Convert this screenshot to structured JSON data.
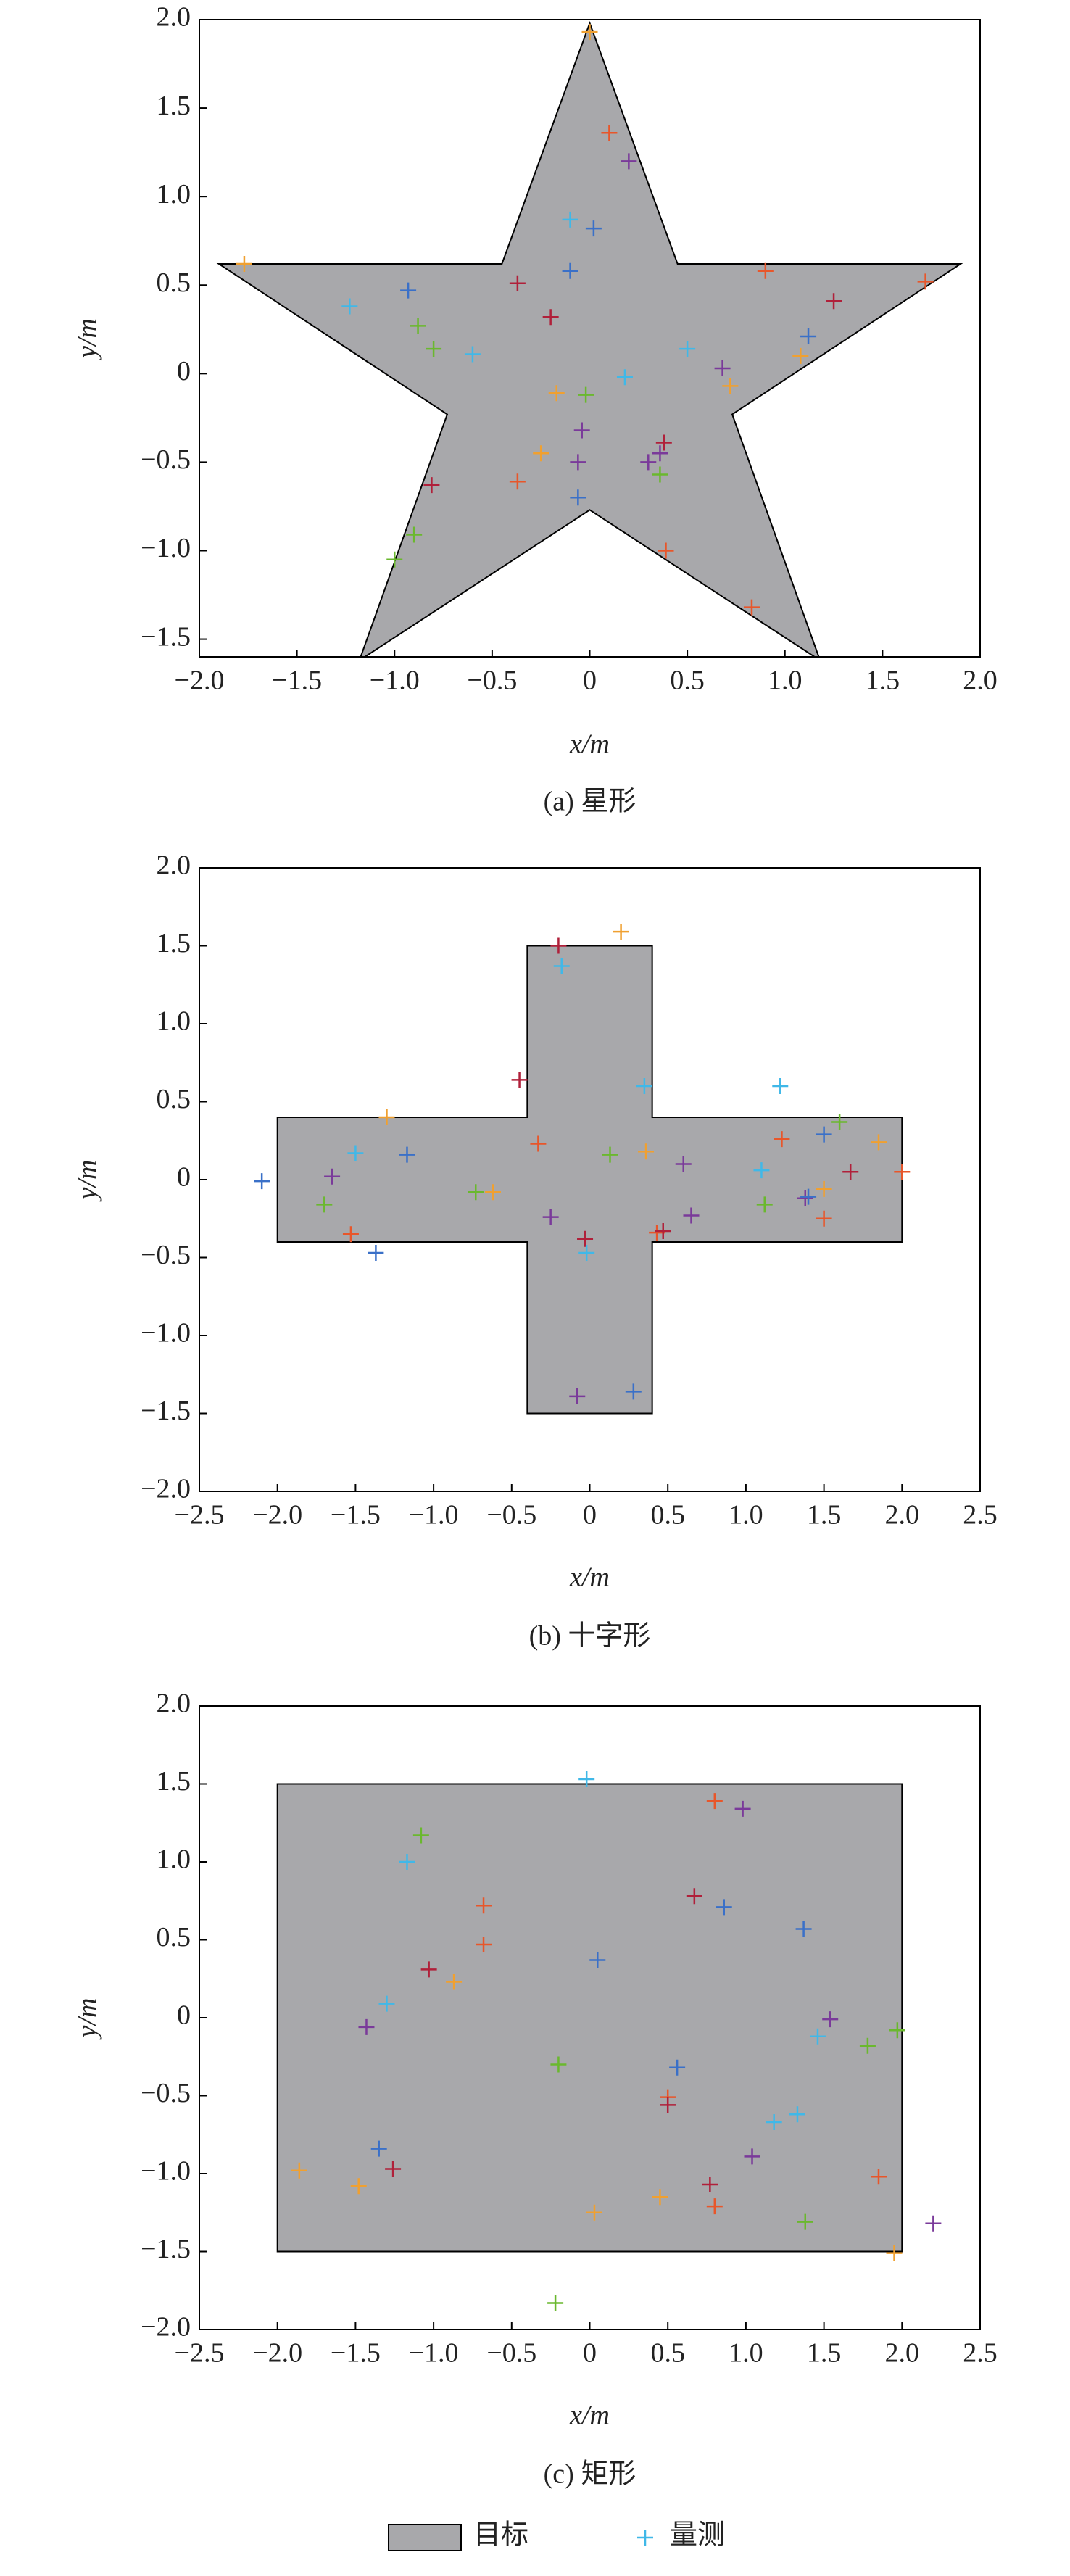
{
  "chart_data": [
    {
      "type": "scatter",
      "caption": "(a) 星形",
      "x_label": "x/m",
      "y_label": "y/m",
      "xlim": [
        -2,
        2
      ],
      "ylim": [
        -1.6,
        2
      ],
      "xticks": [
        {
          "value": -2,
          "label": "−2.0"
        },
        {
          "value": -1.5,
          "label": "−1.5"
        },
        {
          "value": -1,
          "label": "−1.0"
        },
        {
          "value": -0.5,
          "label": "−0.5"
        },
        0,
        0.5,
        {
          "value": 1,
          "label": "1.0"
        },
        1.5,
        {
          "value": 2,
          "label": "2.0"
        }
      ],
      "yticks": [
        {
          "value": -1.5,
          "label": "−1.5"
        },
        {
          "value": -1,
          "label": "−1.0"
        },
        {
          "value": -0.5,
          "label": "−0.5"
        },
        0,
        0.5,
        {
          "value": 1,
          "label": "1.0"
        },
        1.5,
        {
          "value": 2,
          "label": "2.0"
        }
      ],
      "target": {
        "color": "#a8a8ab",
        "x": [
          0,
          0.45,
          1.9,
          0.73,
          1.18,
          0,
          -1.18,
          -0.73,
          -1.9,
          -0.45
        ],
        "y": [
          1.98,
          0.62,
          0.62,
          -0.23,
          -1.62,
          -0.77,
          -1.62,
          -0.23,
          0.62,
          0.62
        ]
      },
      "series": [
        {
          "x": [
            0.0,
            0.1,
            0.2,
            -0.1,
            0.02,
            -1.77,
            -1.23,
            -0.93,
            -0.37,
            -0.1,
            -0.2,
            0.9,
            1.25,
            1.72,
            1.12,
            1.08,
            -0.88,
            -0.8,
            -0.6,
            0.5,
            0.68,
            0.72,
            0.18,
            -0.17,
            -0.02,
            -0.04,
            -0.25,
            -0.06,
            0.38,
            0.36,
            0.3,
            0.36,
            -0.81,
            -0.37,
            -0.06,
            0.39,
            -0.9,
            -1.0,
            0.83
          ],
          "y": [
            1.93,
            1.36,
            1.2,
            0.87,
            0.82,
            0.62,
            0.38,
            0.47,
            0.51,
            0.58,
            0.32,
            0.58,
            0.41,
            0.52,
            0.21,
            0.1,
            0.27,
            0.14,
            0.11,
            0.14,
            0.03,
            -0.07,
            -0.02,
            -0.11,
            -0.12,
            -0.32,
            -0.45,
            -0.5,
            -0.39,
            -0.45,
            -0.5,
            -0.57,
            -0.63,
            -0.61,
            -0.7,
            -1.0,
            -0.91,
            -1.05,
            -1.32
          ],
          "colors": [
            "#f0a030",
            "#e8562a",
            "#7a3a9a",
            "#40b8e8",
            "#3a70c8",
            "#f0a030",
            "#40b8e8",
            "#3a70c8",
            "#b0203a",
            "#3a70c8",
            "#b0203a",
            "#e8562a",
            "#b0203a",
            "#e8562a",
            "#3a70c8",
            "#f0a030",
            "#6ab82e",
            "#6ab82e",
            "#40b8e8",
            "#40b8e8",
            "#7a3a9a",
            "#f0a030",
            "#40b8e8",
            "#f0a030",
            "#6ab82e",
            "#7a3a9a",
            "#f0a030",
            "#7a3a9a",
            "#b0203a",
            "#7a3a9a",
            "#7a3a9a",
            "#6ab82e",
            "#b0203a",
            "#e8562a",
            "#3a70c8",
            "#e8562a",
            "#6ab82e",
            "#6ab82e",
            "#e8562a"
          ]
        }
      ]
    },
    {
      "type": "scatter",
      "caption": "(b) 十字形",
      "x_label": "x/m",
      "y_label": "y/m",
      "xlim": [
        -2.5,
        2.5
      ],
      "ylim": [
        -2,
        2
      ],
      "xticks": [
        {
          "value": -2.5,
          "label": "−2.5"
        },
        {
          "value": -2,
          "label": "−2.0"
        },
        {
          "value": -1.5,
          "label": "−1.5"
        },
        {
          "value": -1,
          "label": "−1.0"
        },
        {
          "value": -0.5,
          "label": "−0.5"
        },
        0,
        0.5,
        {
          "value": 1,
          "label": "1.0"
        },
        1.5,
        {
          "value": 2,
          "label": "2.0"
        },
        2.5
      ],
      "yticks": [
        {
          "value": -2,
          "label": "−2.0"
        },
        {
          "value": -1.5,
          "label": "−1.5"
        },
        {
          "value": -1,
          "label": "−1.0"
        },
        {
          "value": -0.5,
          "label": "−0.5"
        },
        0,
        0.5,
        {
          "value": 1,
          "label": "1.0"
        },
        1.5,
        {
          "value": 2,
          "label": "2.0"
        }
      ],
      "target": {
        "color": "#a8a8ab",
        "x": [
          -0.4,
          0.4,
          0.4,
          2,
          2,
          0.4,
          0.4,
          -0.4,
          -0.4,
          -2,
          -2,
          -0.4
        ],
        "y": [
          1.5,
          1.5,
          0.4,
          0.4,
          -0.4,
          -0.4,
          -1.5,
          -1.5,
          -0.4,
          -0.4,
          0.4,
          0.4
        ]
      },
      "series": [
        {
          "x": [
            0.2,
            -0.2,
            -0.18,
            -0.45,
            0.35,
            1.22,
            -1.3,
            -1.5,
            -1.17,
            -0.33,
            0.13,
            0.36,
            0.6,
            1.23,
            1.5,
            1.6,
            1.85,
            1.67,
            2.0,
            1.1,
            -2.1,
            -1.65,
            -1.7,
            -0.73,
            -0.62,
            -0.25,
            -0.03,
            -0.02,
            0.43,
            0.47,
            0.65,
            1.12,
            1.38,
            1.4,
            1.5,
            1.5,
            -1.53,
            -1.37,
            -0.08,
            0.28
          ],
          "y": [
            1.59,
            1.5,
            1.37,
            0.64,
            0.6,
            0.6,
            0.4,
            0.17,
            0.16,
            0.23,
            0.16,
            0.18,
            0.1,
            0.26,
            0.29,
            0.37,
            0.24,
            0.05,
            0.05,
            0.06,
            -0.01,
            0.02,
            -0.16,
            -0.08,
            -0.08,
            -0.24,
            -0.38,
            -0.47,
            -0.34,
            -0.33,
            -0.23,
            -0.16,
            -0.12,
            -0.11,
            -0.06,
            -0.25,
            -0.35,
            -0.47,
            -1.39,
            -1.36
          ],
          "colors": [
            "#f0a030",
            "#b0203a",
            "#40b8e8",
            "#b0203a",
            "#40b8e8",
            "#40b8e8",
            "#f0a030",
            "#40b8e8",
            "#3a70c8",
            "#e8562a",
            "#6ab82e",
            "#f0a030",
            "#7a3a9a",
            "#e8562a",
            "#3a70c8",
            "#6ab82e",
            "#f0a030",
            "#b0203a",
            "#e8562a",
            "#40b8e8",
            "#3a70c8",
            "#7a3a9a",
            "#6ab82e",
            "#6ab82e",
            "#f0a030",
            "#7a3a9a",
            "#b0203a",
            "#40b8e8",
            "#e8562a",
            "#b0203a",
            "#7a3a9a",
            "#6ab82e",
            "#7a3a9a",
            "#3a70c8",
            "#f0a030",
            "#e8562a",
            "#e8562a",
            "#3a70c8",
            "#7a3a9a",
            "#3a70c8"
          ]
        }
      ]
    },
    {
      "type": "scatter",
      "caption": "(c) 矩形",
      "x_label": "x/m",
      "y_label": "y/m",
      "xlim": [
        -2.5,
        2.5
      ],
      "ylim": [
        -2,
        2
      ],
      "xticks": [
        {
          "value": -2.5,
          "label": "−2.5"
        },
        {
          "value": -2,
          "label": "−2.0"
        },
        {
          "value": -1.5,
          "label": "−1.5"
        },
        {
          "value": -1,
          "label": "−1.0"
        },
        {
          "value": -0.5,
          "label": "−0.5"
        },
        0,
        0.5,
        {
          "value": 1,
          "label": "1.0"
        },
        1.5,
        {
          "value": 2,
          "label": "2.0"
        },
        2.5
      ],
      "yticks": [
        {
          "value": -2,
          "label": "−2.0"
        },
        {
          "value": -1.5,
          "label": "−1.5"
        },
        {
          "value": -1,
          "label": "−1.0"
        },
        {
          "value": -0.5,
          "label": "−0.5"
        },
        0,
        0.5,
        {
          "value": 1,
          "label": "1.0"
        },
        1.5,
        {
          "value": 2,
          "label": "2.0"
        }
      ],
      "target": {
        "color": "#a8a8ab",
        "x": [
          -2,
          2,
          2,
          -2
        ],
        "y": [
          1.5,
          1.5,
          -1.5,
          -1.5
        ]
      },
      "series": [
        {
          "x": [
            -0.02,
            0.8,
            0.98,
            -1.08,
            -1.17,
            -0.68,
            0.67,
            0.86,
            -0.68,
            0.05,
            1.37,
            -1.03,
            -0.87,
            -1.3,
            -1.43,
            -0.2,
            0.56,
            0.5,
            0.5,
            1.46,
            1.54,
            1.78,
            1.97,
            1.18,
            1.33,
            -1.35,
            -1.26,
            -1.86,
            -1.48,
            1.04,
            0.77,
            0.8,
            1.85,
            0.45,
            0.03,
            1.38,
            1.95,
            2.2,
            -0.22
          ],
          "y": [
            1.53,
            1.39,
            1.34,
            1.17,
            1.0,
            0.72,
            0.78,
            0.71,
            0.47,
            0.37,
            0.57,
            0.31,
            0.23,
            0.09,
            -0.06,
            -0.3,
            -0.32,
            -0.51,
            -0.56,
            -0.12,
            -0.01,
            -0.18,
            -0.08,
            -0.67,
            -0.62,
            -0.84,
            -0.97,
            -0.98,
            -1.08,
            -0.89,
            -1.07,
            -1.21,
            -1.02,
            -1.15,
            -1.25,
            -1.31,
            -1.51,
            -1.32,
            -1.83
          ],
          "colors": [
            "#40b8e8",
            "#e8562a",
            "#7a3a9a",
            "#6ab82e",
            "#40b8e8",
            "#e8562a",
            "#b0203a",
            "#3a70c8",
            "#e8562a",
            "#3a70c8",
            "#3a70c8",
            "#b0203a",
            "#f0a030",
            "#40b8e8",
            "#7a3a9a",
            "#6ab82e",
            "#3a70c8",
            "#e8562a",
            "#b0203a",
            "#40b8e8",
            "#7a3a9a",
            "#6ab82e",
            "#6ab82e",
            "#40b8e8",
            "#40b8e8",
            "#3a70c8",
            "#b0203a",
            "#f0a030",
            "#f0a030",
            "#7a3a9a",
            "#b0203a",
            "#e8562a",
            "#e8562a",
            "#f0a030",
            "#f0a030",
            "#6ab82e",
            "#f0a030",
            "#7a3a9a",
            "#6ab82e"
          ]
        }
      ]
    }
  ],
  "legend": [
    {
      "label": "目标",
      "color": "#a8a8ab",
      "kind": "area"
    },
    {
      "label": "量测",
      "color": "#40b8e8",
      "kind": "marker"
    }
  ]
}
